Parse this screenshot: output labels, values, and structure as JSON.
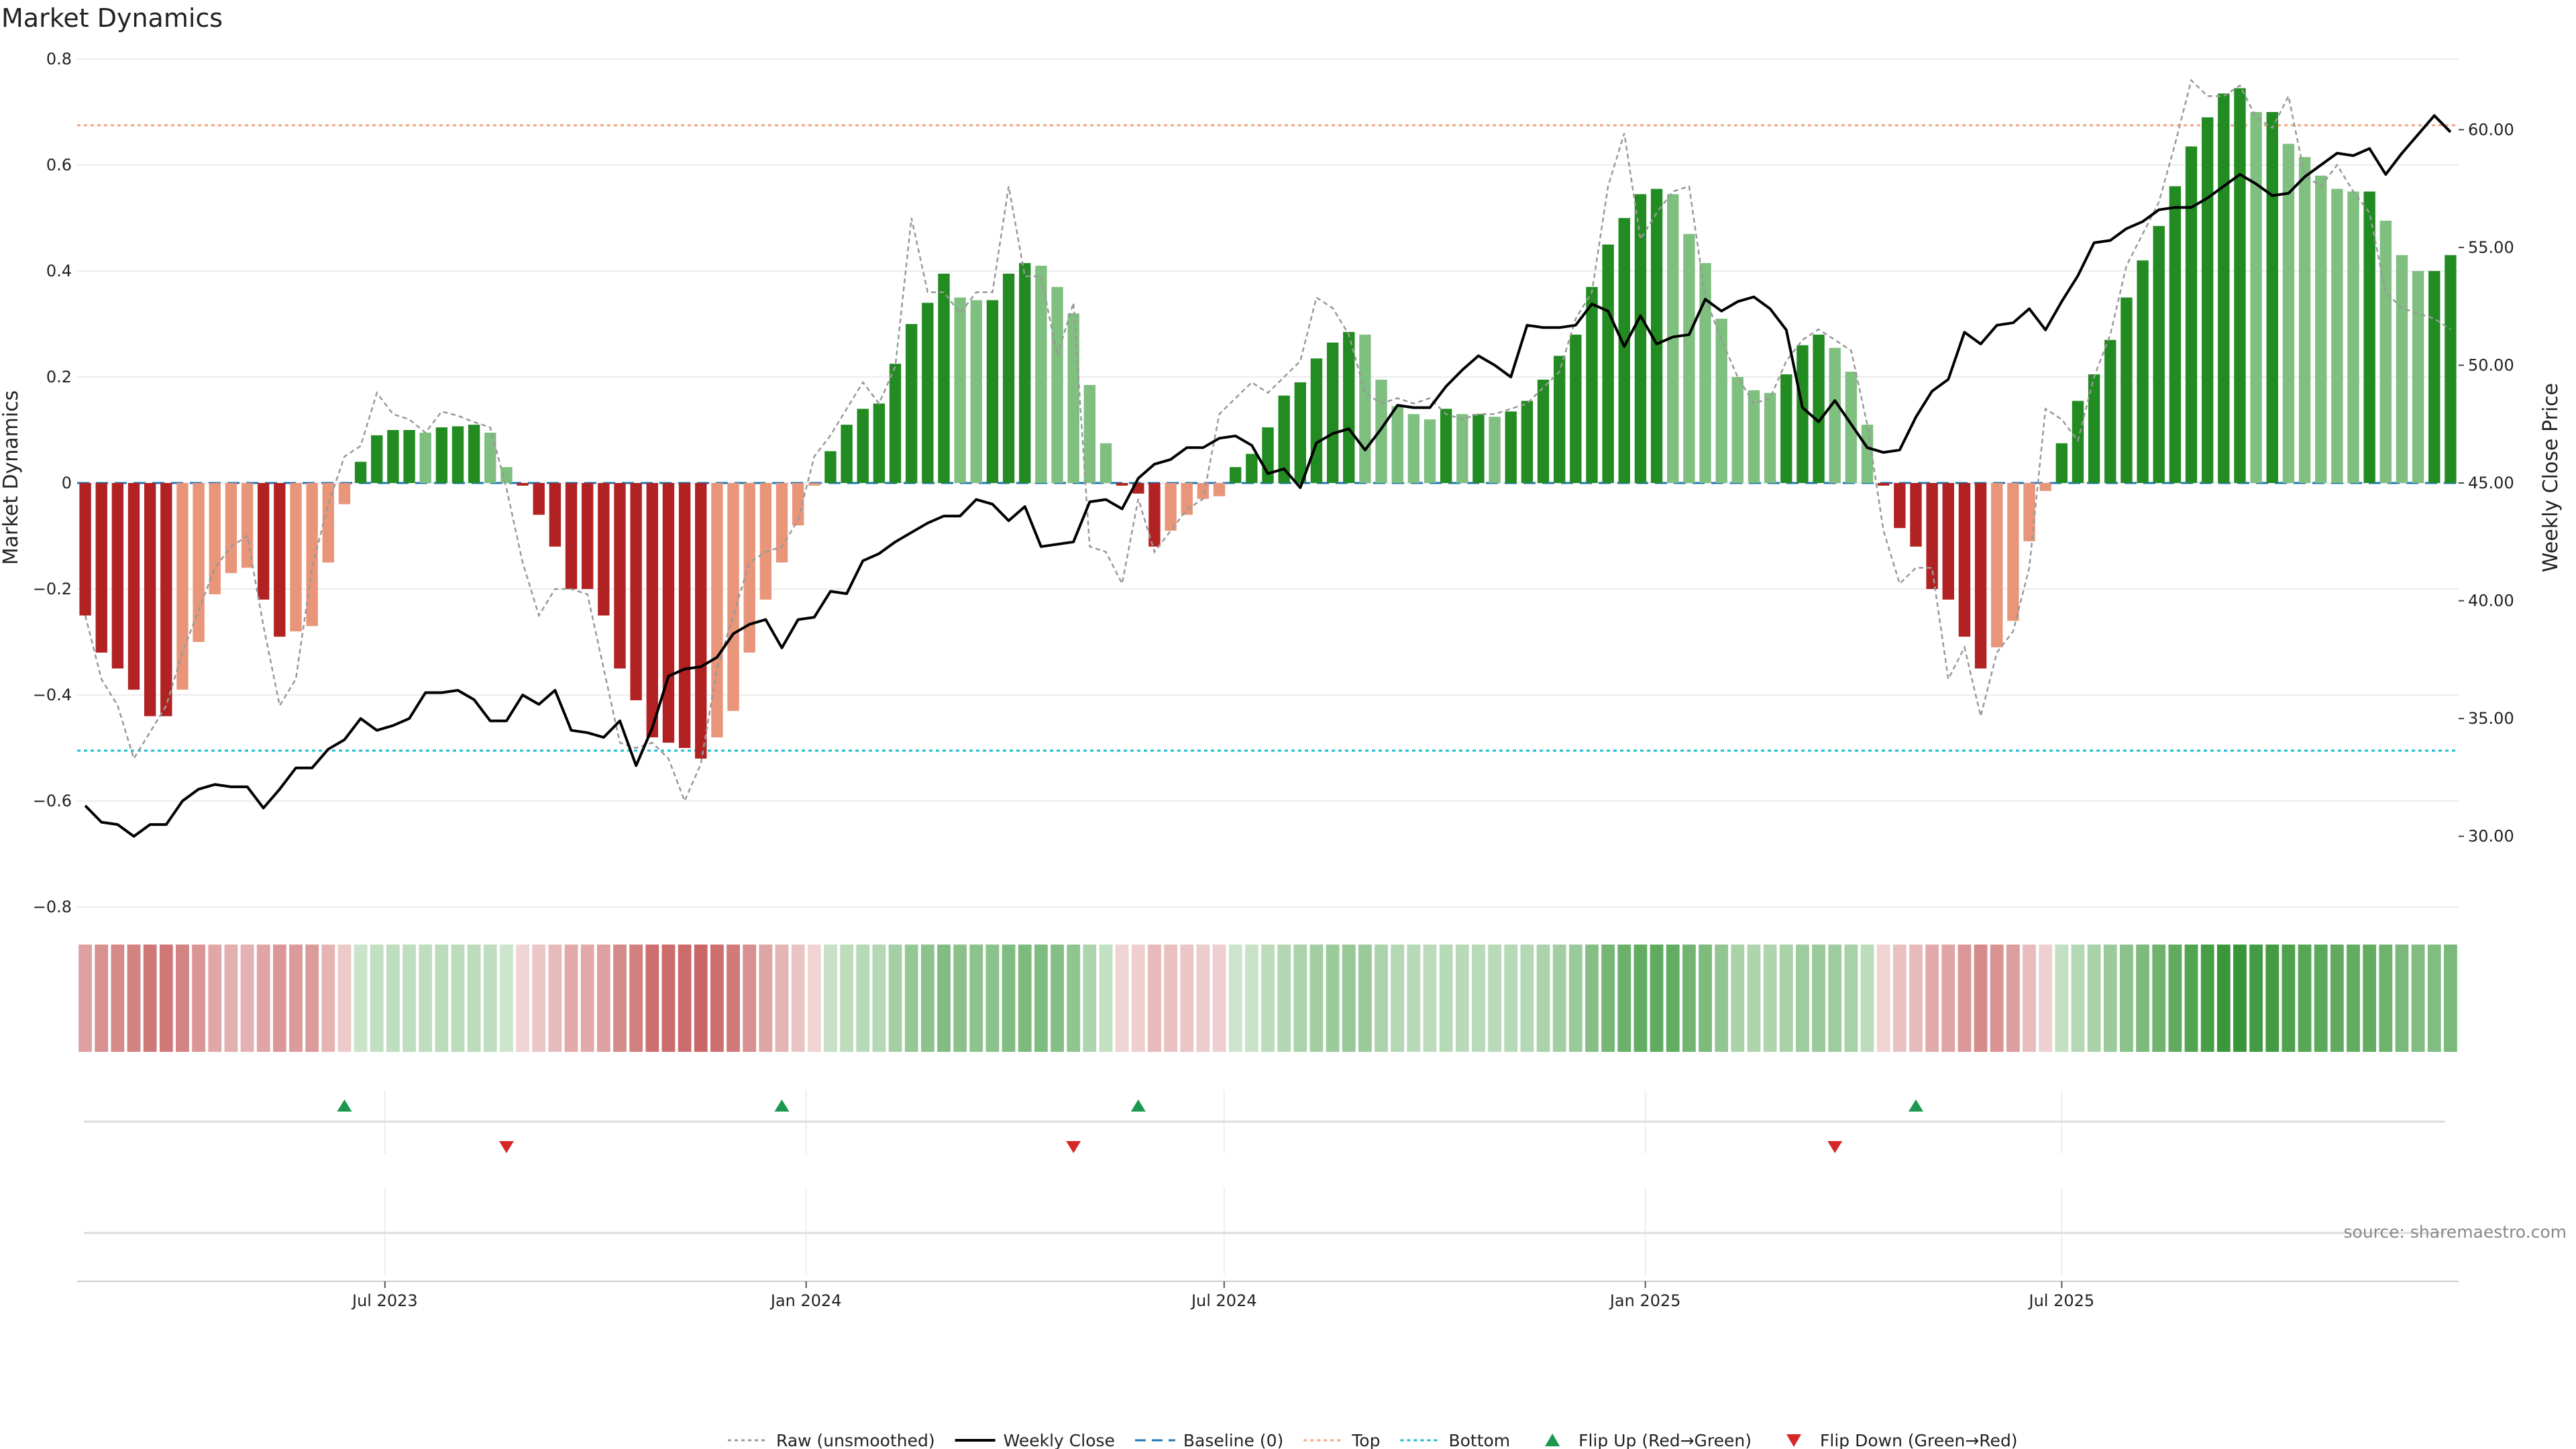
{
  "chart_data": {
    "type": "bar",
    "title": "Market Dynamics",
    "ylabel_left": "Market Dynamics",
    "ylabel_right": "Weekly Close Price",
    "ylim_left": [
      -0.8,
      0.8
    ],
    "yticks_left": [
      "0.8",
      "0.6",
      "0.4",
      "0.2",
      "0",
      "−0.2",
      "−0.4",
      "−0.6",
      "−0.8"
    ],
    "ylim_right": [
      27.0,
      63.0
    ],
    "yticks_right": [
      "60.00",
      "55.00",
      "50.00",
      "45.00",
      "40.00",
      "35.00",
      "30.00"
    ],
    "x_ticks": [
      "Jul 2023",
      "Jan 2024",
      "Jul 2024",
      "Jan 2025",
      "Jul 2025"
    ],
    "top_threshold": 0.675,
    "bottom_threshold": -0.505,
    "source_text": "source: sharemaestro.com",
    "colors": {
      "strong_up": "#228b22",
      "weak_up": "#7fbf7f",
      "strong_down": "#b22222",
      "weak_down": "#e8957a",
      "close_line": "#000000",
      "raw_line": "#999999",
      "baseline": "#1f77b4",
      "top_line": "#f4a582",
      "bottom_line": "#17becf",
      "flip_up": "#1a9850",
      "flip_down": "#d62728"
    },
    "dynamics": [
      -0.25,
      -0.32,
      -0.35,
      -0.39,
      -0.44,
      -0.44,
      -0.39,
      -0.3,
      -0.21,
      -0.17,
      -0.16,
      -0.22,
      -0.29,
      -0.28,
      -0.27,
      -0.15,
      -0.04,
      0.04,
      0.09,
      0.1,
      0.1,
      0.095,
      0.105,
      0.107,
      0.11,
      0.095,
      0.03,
      -0.005,
      -0.06,
      -0.12,
      -0.2,
      -0.2,
      -0.25,
      -0.35,
      -0.41,
      -0.48,
      -0.49,
      -0.5,
      -0.52,
      -0.48,
      -0.43,
      -0.32,
      -0.22,
      -0.15,
      -0.08,
      -0.005,
      0.06,
      0.11,
      0.14,
      0.15,
      0.225,
      0.3,
      0.34,
      0.395,
      0.35,
      0.345,
      0.345,
      0.395,
      0.415,
      0.41,
      0.37,
      0.32,
      0.185,
      0.075,
      -0.005,
      -0.02,
      -0.12,
      -0.09,
      -0.06,
      -0.03,
      -0.025,
      0.03,
      0.055,
      0.105,
      0.165,
      0.19,
      0.235,
      0.265,
      0.285,
      0.28,
      0.195,
      0.145,
      0.13,
      0.12,
      0.14,
      0.13,
      0.13,
      0.125,
      0.135,
      0.155,
      0.195,
      0.24,
      0.28,
      0.37,
      0.45,
      0.5,
      0.545,
      0.555,
      0.545,
      0.47,
      0.415,
      0.31,
      0.2,
      0.175,
      0.17,
      0.205,
      0.26,
      0.28,
      0.255,
      0.21,
      0.11,
      -0.005,
      -0.085,
      -0.12,
      -0.2,
      -0.22,
      -0.29,
      -0.35,
      -0.31,
      -0.26,
      -0.11,
      -0.015,
      0.075,
      0.155,
      0.205,
      0.27,
      0.35,
      0.42,
      0.485,
      0.56,
      0.635,
      0.69,
      0.735,
      0.745,
      0.7,
      0.7,
      0.64,
      0.615,
      0.58,
      0.555,
      0.55,
      0.55,
      0.495,
      0.43,
      0.4,
      0.4,
      0.43
    ],
    "weekly_close": [
      31.3,
      30.6,
      30.5,
      30.0,
      30.5,
      30.5,
      31.5,
      32.0,
      32.2,
      32.1,
      32.1,
      31.2,
      32.0,
      32.9,
      32.9,
      33.7,
      34.1,
      35.0,
      34.5,
      34.7,
      35.0,
      36.1,
      36.1,
      36.2,
      35.8,
      34.9,
      34.9,
      36.0,
      35.6,
      36.2,
      34.5,
      34.4,
      34.2,
      34.9,
      33.0,
      34.6,
      36.8,
      37.1,
      37.2,
      37.6,
      38.6,
      39.0,
      39.2,
      38.0,
      39.2,
      39.3,
      40.4,
      40.3,
      41.7,
      42.0,
      42.5,
      42.9,
      43.3,
      43.6,
      43.6,
      44.3,
      44.1,
      43.4,
      44.0,
      42.3,
      42.4,
      42.5,
      44.2,
      44.3,
      43.9,
      45.2,
      45.8,
      46.0,
      46.5,
      46.5,
      46.9,
      47.0,
      46.6,
      45.4,
      45.6,
      44.8,
      46.7,
      47.1,
      47.3,
      46.4,
      47.3,
      48.3,
      48.2,
      48.2,
      49.1,
      49.8,
      50.4,
      50.0,
      49.5,
      51.7,
      51.6,
      51.6,
      51.7,
      52.6,
      52.3,
      50.8,
      52.1,
      50.9,
      51.2,
      51.3,
      52.8,
      52.3,
      52.7,
      52.9,
      52.4,
      51.5,
      48.2,
      47.6,
      48.5,
      47.5,
      46.5,
      46.3,
      46.4,
      47.8,
      48.9,
      49.4,
      51.4,
      50.9,
      51.7,
      51.8,
      52.4,
      51.5,
      52.7,
      53.8,
      55.2,
      55.3,
      55.8,
      56.1,
      56.6,
      56.7,
      56.7,
      57.1,
      57.6,
      58.1,
      57.7,
      57.2,
      57.3,
      58.0,
      58.5,
      59.0,
      58.9,
      59.2,
      58.1,
      59.0,
      59.8,
      60.6,
      59.9
    ],
    "raw": [
      -0.25,
      -0.37,
      -0.42,
      -0.52,
      -0.47,
      -0.42,
      -0.32,
      -0.24,
      -0.16,
      -0.12,
      -0.1,
      -0.27,
      -0.42,
      -0.37,
      -0.16,
      -0.04,
      0.05,
      0.07,
      0.17,
      0.13,
      0.12,
      0.095,
      0.135,
      0.127,
      0.115,
      0.105,
      -0.01,
      -0.15,
      -0.25,
      -0.2,
      -0.2,
      -0.21,
      -0.35,
      -0.49,
      -0.5,
      -0.49,
      -0.52,
      -0.6,
      -0.53,
      -0.35,
      -0.25,
      -0.15,
      -0.13,
      -0.12,
      -0.07,
      0.05,
      0.09,
      0.14,
      0.19,
      0.15,
      0.22,
      0.5,
      0.36,
      0.36,
      0.32,
      0.36,
      0.36,
      0.56,
      0.39,
      0.39,
      0.24,
      0.34,
      -0.12,
      -0.13,
      -0.19,
      -0.03,
      -0.13,
      -0.09,
      -0.05,
      -0.03,
      0.13,
      0.16,
      0.19,
      0.17,
      0.2,
      0.23,
      0.35,
      0.33,
      0.28,
      0.17,
      0.15,
      0.16,
      0.15,
      0.16,
      0.13,
      0.12,
      0.13,
      0.13,
      0.14,
      0.15,
      0.18,
      0.21,
      0.31,
      0.36,
      0.56,
      0.66,
      0.46,
      0.51,
      0.55,
      0.56,
      0.35,
      0.27,
      0.2,
      0.15,
      0.16,
      0.23,
      0.27,
      0.29,
      0.27,
      0.25,
      0.11,
      -0.09,
      -0.19,
      -0.16,
      -0.16,
      -0.37,
      -0.31,
      -0.44,
      -0.32,
      -0.28,
      -0.16,
      0.14,
      0.12,
      0.08,
      0.2,
      0.28,
      0.41,
      0.47,
      0.53,
      0.64,
      0.76,
      0.73,
      0.73,
      0.75,
      0.69,
      0.67,
      0.73,
      0.58,
      0.56,
      0.6,
      0.55,
      0.51,
      0.36,
      0.33,
      0.32,
      0.31,
      0.29
    ],
    "flip_up_weeks": [
      16,
      43,
      65,
      113
    ],
    "flip_down_weeks": [
      26,
      61,
      108
    ],
    "legend": [
      {
        "label": "Raw (unsmoothed)",
        "kind": "dotted",
        "color": "#999999"
      },
      {
        "label": "Weekly Close",
        "kind": "solid",
        "color": "#000000"
      },
      {
        "label": "Baseline (0)",
        "kind": "dashed",
        "color": "#1f77b4"
      },
      {
        "label": "Top",
        "kind": "dotted",
        "color": "#f4a582"
      },
      {
        "label": "Bottom",
        "kind": "dotted",
        "color": "#17becf"
      },
      {
        "label": "Flip Up (Red→Green)",
        "kind": "tri-up",
        "color": "#1a9850"
      },
      {
        "label": "Flip Down (Green→Red)",
        "kind": "tri-down",
        "color": "#d62728"
      }
    ]
  }
}
